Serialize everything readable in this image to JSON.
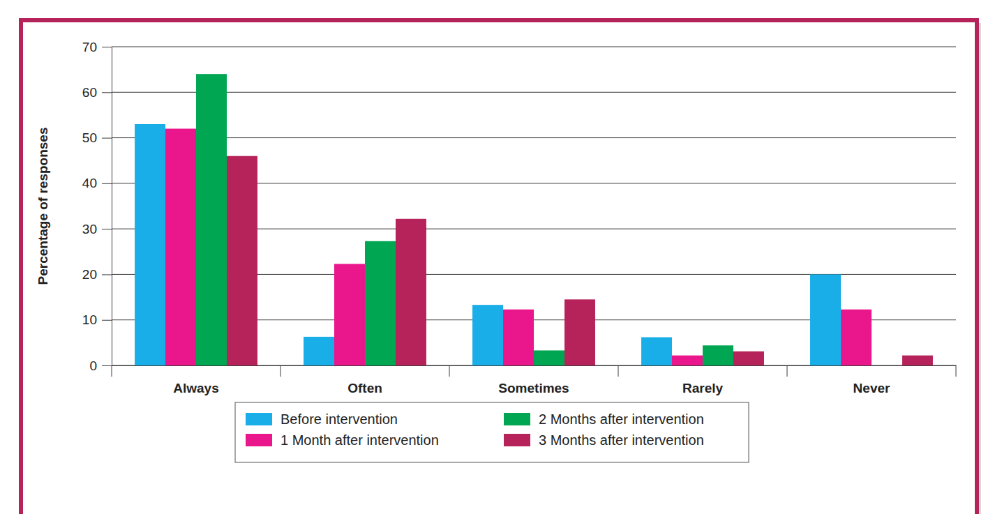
{
  "chart_data": {
    "type": "bar",
    "y_label": "Percentage of responses",
    "categories": [
      "Always",
      "Often",
      "Sometimes",
      "Rarely",
      "Never"
    ],
    "series": [
      {
        "name": "Before intervention",
        "color": "#1aaee8",
        "values": [
          53,
          6.3,
          13.3,
          6.2,
          20
        ]
      },
      {
        "name": "1 Month after intervention",
        "color": "#ea168c",
        "values": [
          52,
          22.3,
          12.3,
          2.2,
          12.3
        ]
      },
      {
        "name": "2 Months after intervention",
        "color": "#00a651",
        "values": [
          64,
          27.3,
          3.3,
          4.4,
          0
        ]
      },
      {
        "name": "3 Months after intervention",
        "color": "#b5235a",
        "values": [
          46,
          32.2,
          14.5,
          3.1,
          2.2
        ]
      }
    ],
    "ylim": [
      0,
      70
    ],
    "yticks": [
      0,
      10,
      20,
      30,
      40,
      50,
      60,
      70
    ],
    "grid": true,
    "legend": "bottom"
  }
}
